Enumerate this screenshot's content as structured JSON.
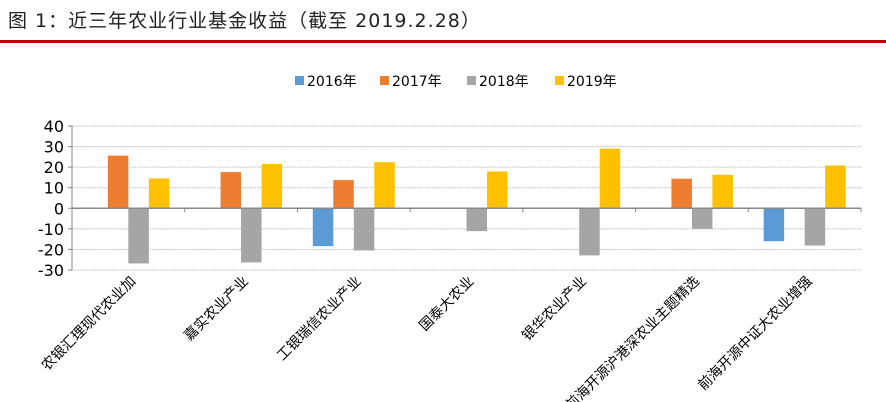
{
  "header": {
    "title": "图 1：近三年农业行业基金收益（截至 2019.2.28）"
  },
  "chart_data": {
    "type": "bar",
    "title": "",
    "categories": [
      "农银汇理现代农业加",
      "嘉实农业产业",
      "工银瑞信农业产业",
      "国泰大农业",
      "银华农业产业",
      "前海开源沪港深农业主题精选",
      "前海开源中证大农业增强"
    ],
    "series": [
      {
        "name": "2016年",
        "color": "#5b9bd5",
        "values": [
          null,
          null,
          -18.4,
          null,
          null,
          null,
          -16.0
        ]
      },
      {
        "name": "2017年",
        "color": "#ed7d31",
        "values": [
          25.6,
          17.6,
          13.7,
          null,
          null,
          14.4,
          null
        ]
      },
      {
        "name": "2018年",
        "color": "#a5a5a5",
        "values": [
          -26.8,
          -26.3,
          -20.5,
          -11.1,
          -22.9,
          -10.0,
          -18.1
        ]
      },
      {
        "name": "2019年",
        "color": "#ffc000",
        "values": [
          14.5,
          21.5,
          22.4,
          17.9,
          29.0,
          16.3,
          20.8
        ]
      }
    ],
    "yticks": [
      40,
      30,
      20,
      10,
      0,
      -10,
      -20,
      -30
    ],
    "ylim": [
      -30,
      40
    ],
    "grid": true,
    "legend": "top"
  }
}
